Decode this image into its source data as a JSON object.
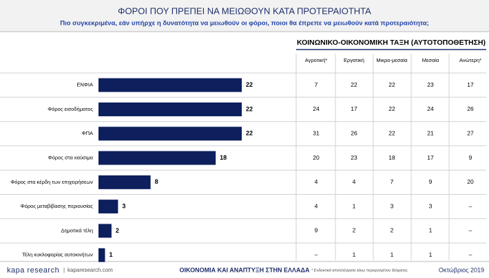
{
  "chart_data": {
    "type": "bar",
    "orientation": "horizontal",
    "title": "ΦΟΡΟΙ ΠΟΥ ΠΡΕΠΕΙ ΝΑ ΜΕΙΩΘΟΥΝ ΚΑΤΑ ΠΡΟΤΕΡΑΙΟΤΗΤΑ",
    "subtitle": "Πιο συγκεκριμένα, εάν υπήρχε η δυνατότητα να μειωθούν οι φόροι, ποιοι θα έπρεπε να μειωθούν κατά προτεραιότητα;",
    "categories": [
      "ΕΝΦΙΑ",
      "Φόρος εισοδήματος",
      "ΦΠΑ",
      "Φόρος στα καύσιμα",
      "Φόρος στα κέρδη των επιχειρήσεων",
      "Φόρος μεταβίβασης περιουσίας",
      "Δημοτικά τέλη",
      "Τέλη κυκλοφορίας αυτοκινήτων"
    ],
    "values": [
      22,
      22,
      22,
      18,
      8,
      3,
      2,
      1
    ],
    "color": "#0d1f5c"
  },
  "table": {
    "title": "ΚΟΙΝΩΝΙΚΟ-ΟΙΚΟΝΟΜΙΚΗ ΤΑΞΗ (ΑΥΤΟΤΟΠΟΘΕΤΗΣΗ)",
    "columns": [
      "Αγροτική*",
      "Εργατική",
      "Μικρο-μεσαία",
      "Μεσαία",
      "Ανώτερη*"
    ],
    "rows": [
      [
        7,
        22,
        22,
        23,
        17
      ],
      [
        24,
        17,
        22,
        24,
        26
      ],
      [
        31,
        26,
        22,
        21,
        27
      ],
      [
        20,
        23,
        18,
        17,
        9
      ],
      [
        4,
        4,
        7,
        9,
        20
      ],
      [
        4,
        1,
        3,
        3,
        "–"
      ],
      [
        9,
        2,
        2,
        1,
        "–"
      ],
      [
        "–",
        1,
        1,
        1,
        "–"
      ]
    ]
  },
  "footer": {
    "brand": "kapa research",
    "site": "kaparesearch.com",
    "topic": "ΟΙΚΟΝΟΜΙΑ ΚΑΙ ΑΝΑΠΤΥΞΗ ΣΤΗΝ ΕΛΛΑΔΑ",
    "note": "* Ενδεικτικά αποτελέσματα λόγω περιορισμένου δείγματος",
    "date": "Οκτώβριος 2019"
  }
}
